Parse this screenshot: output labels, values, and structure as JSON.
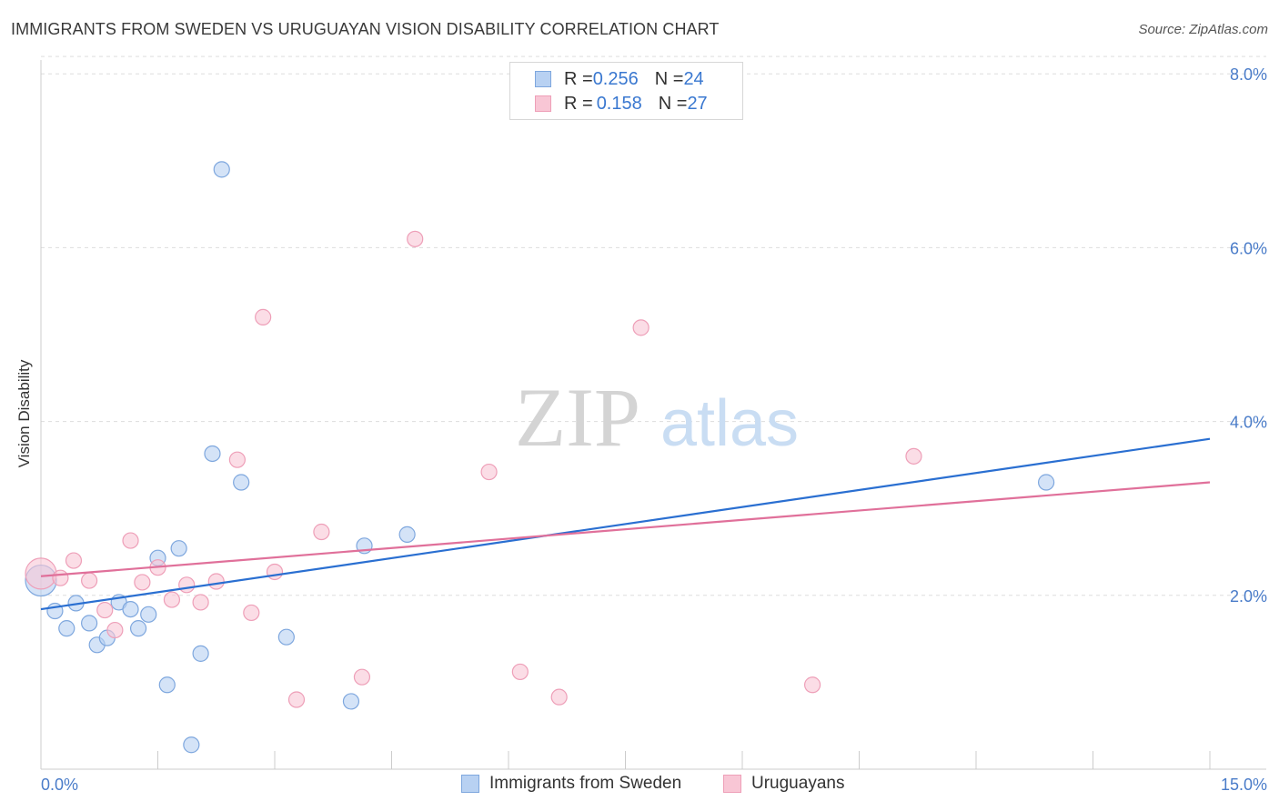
{
  "header": {
    "title": "IMMIGRANTS FROM SWEDEN VS URUGUAYAN VISION DISABILITY CORRELATION CHART",
    "source": "Source: ZipAtlas.com"
  },
  "watermark": {
    "zip": "ZIP",
    "atlas": "atlas"
  },
  "legend": {
    "rows": [
      {
        "r_label": "R = ",
        "r_value": "0.256",
        "n_label": "N = ",
        "n_value": "24"
      },
      {
        "r_label": "R = ",
        "r_value": "0.158",
        "n_label": "N = ",
        "n_value": "27"
      }
    ]
  },
  "bottom_legend": {
    "items": [
      {
        "label": "Immigrants from Sweden"
      },
      {
        "label": "Uruguayans"
      }
    ]
  },
  "colors": {
    "blue_fill": "#b8d1f2",
    "blue_stroke": "#7ea7de",
    "blue_line": "#2a6fd1",
    "pink_fill": "#f8c6d5",
    "pink_stroke": "#ee9fb8",
    "pink_line": "#e0709a",
    "tick_label": "#4a7cc9",
    "grid": "#dddddd"
  },
  "chart_data": {
    "type": "scatter",
    "title": "IMMIGRANTS FROM SWEDEN VS URUGUAYAN VISION DISABILITY CORRELATION CHART",
    "xlabel": "",
    "ylabel": "Vision Disability",
    "xlim": [
      0,
      15
    ],
    "ylim": [
      0,
      8.2
    ],
    "x_tick_labels": [
      "0.0%",
      "15.0%"
    ],
    "y_ticks": [
      2,
      4,
      6,
      8
    ],
    "y_tick_labels": [
      "2.0%",
      "4.0%",
      "6.0%",
      "8.0%"
    ],
    "grid": true,
    "legend_position": "top-center",
    "series": [
      {
        "name": "Immigrants from Sweden",
        "color": "#2a6fd1",
        "R": 0.256,
        "N": 24,
        "points": [
          [
            0.0,
            2.17
          ],
          [
            0.18,
            1.82
          ],
          [
            0.33,
            1.62
          ],
          [
            0.45,
            1.91
          ],
          [
            0.62,
            1.68
          ],
          [
            0.72,
            1.43
          ],
          [
            0.85,
            1.51
          ],
          [
            1.0,
            1.92
          ],
          [
            1.15,
            1.84
          ],
          [
            1.25,
            1.62
          ],
          [
            1.38,
            1.78
          ],
          [
            1.5,
            2.43
          ],
          [
            1.62,
            0.97
          ],
          [
            1.77,
            2.54
          ],
          [
            1.93,
            0.28
          ],
          [
            2.05,
            1.33
          ],
          [
            2.2,
            3.63
          ],
          [
            2.32,
            6.9
          ],
          [
            2.57,
            3.3
          ],
          [
            3.15,
            1.52
          ],
          [
            3.98,
            0.78
          ],
          [
            4.15,
            2.57
          ],
          [
            4.7,
            2.7
          ],
          [
            12.9,
            3.3
          ]
        ],
        "trend": {
          "x": [
            0,
            15
          ],
          "y": [
            1.84,
            3.8
          ]
        }
      },
      {
        "name": "Uruguayans",
        "color": "#e0709a",
        "R": 0.158,
        "N": 27,
        "points": [
          [
            0.0,
            2.25
          ],
          [
            0.25,
            2.2
          ],
          [
            0.42,
            2.4
          ],
          [
            0.62,
            2.17
          ],
          [
            0.82,
            1.83
          ],
          [
            0.95,
            1.6
          ],
          [
            1.15,
            2.63
          ],
          [
            1.3,
            2.15
          ],
          [
            1.5,
            2.32
          ],
          [
            1.68,
            1.95
          ],
          [
            1.87,
            2.12
          ],
          [
            2.05,
            1.92
          ],
          [
            2.25,
            2.16
          ],
          [
            2.52,
            3.56
          ],
          [
            2.7,
            1.8
          ],
          [
            2.85,
            5.2
          ],
          [
            3.0,
            2.27
          ],
          [
            3.28,
            0.8
          ],
          [
            3.6,
            2.73
          ],
          [
            4.12,
            1.06
          ],
          [
            4.8,
            6.1
          ],
          [
            5.75,
            3.42
          ],
          [
            6.15,
            1.12
          ],
          [
            6.65,
            0.83
          ],
          [
            7.7,
            5.08
          ],
          [
            9.9,
            0.97
          ],
          [
            11.2,
            3.6
          ]
        ],
        "trend": {
          "x": [
            0,
            15
          ],
          "y": [
            2.22,
            3.3
          ]
        }
      }
    ]
  }
}
